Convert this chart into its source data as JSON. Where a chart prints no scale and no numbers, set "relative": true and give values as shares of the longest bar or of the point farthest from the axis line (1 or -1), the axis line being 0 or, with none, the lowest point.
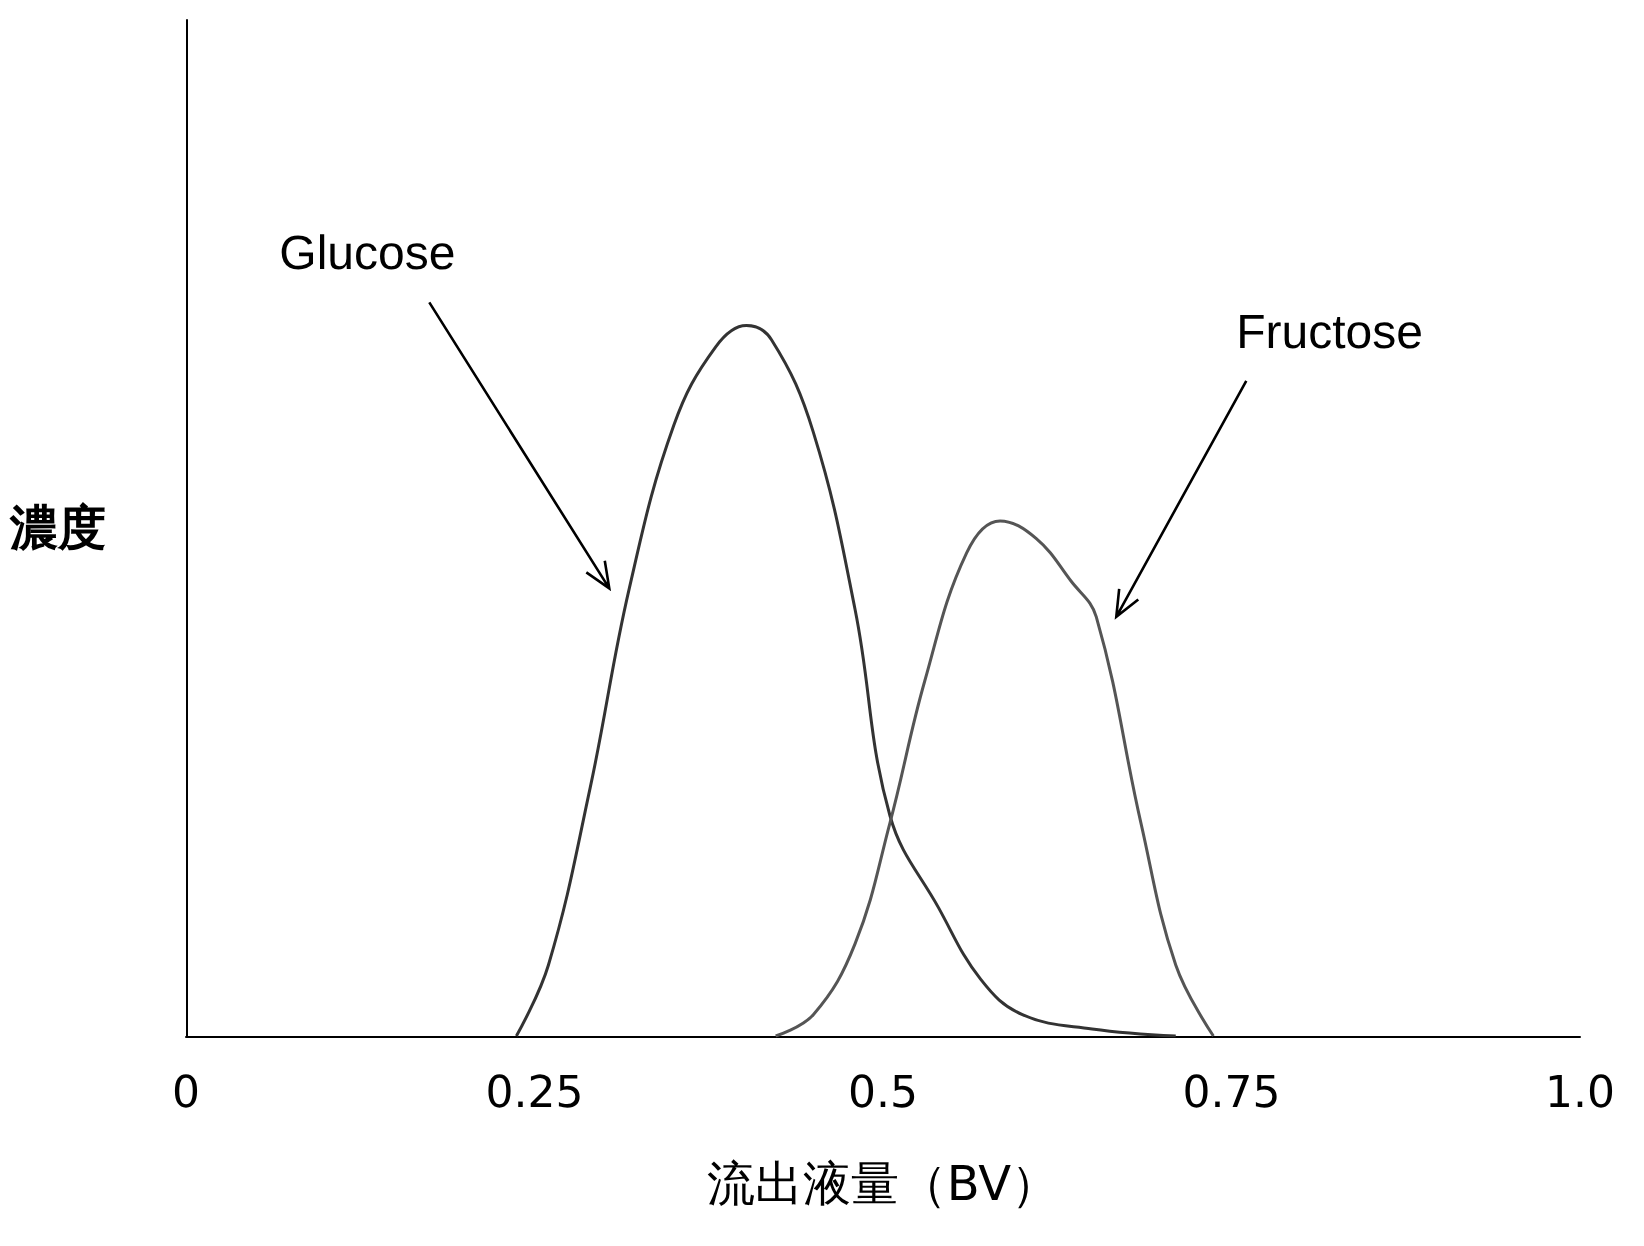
{
  "chart_data": {
    "type": "line",
    "relative": true,
    "xlabel": "流出液量（BV）",
    "ylabel": "濃度",
    "xlim": [
      0,
      1.0
    ],
    "xticks": [
      0,
      0.25,
      0.5,
      0.75,
      "1.0"
    ],
    "grid": false,
    "legend": false,
    "marker": "none",
    "line_style": "solid",
    "series": [
      {
        "name": "Glucose",
        "color": "#333333",
        "x": [
          0.237,
          0.26,
          0.29,
          0.318,
          0.35,
          0.38,
          0.402,
          0.42,
          0.45,
          0.48,
          0.505,
          0.54,
          0.57,
          0.6,
          0.65,
          0.71
        ],
        "values": [
          0,
          0.1,
          0.35,
          0.63,
          0.86,
          0.97,
          1,
          0.98,
          0.85,
          0.6,
          0.31,
          0.18,
          0.08,
          0.03,
          0.01,
          0
        ]
      },
      {
        "name": "Fructose",
        "color": "#555555",
        "x": [
          0.423,
          0.45,
          0.48,
          0.505,
          0.53,
          0.56,
          0.584,
          0.61,
          0.635,
          0.653,
          0.685,
          0.71,
          0.737
        ],
        "values": [
          0,
          0.03,
          0.13,
          0.3,
          0.5,
          0.68,
          0.725,
          0.7,
          0.64,
          0.59,
          0.3,
          0.1,
          0
        ]
      }
    ]
  }
}
